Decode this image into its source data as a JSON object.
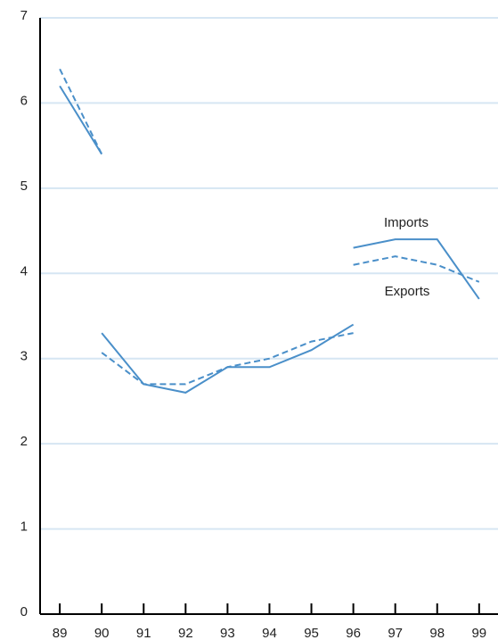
{
  "chart_data": {
    "type": "line",
    "x": [
      89,
      90,
      90,
      90,
      91,
      92,
      93,
      94,
      95,
      96,
      96,
      96,
      97,
      98,
      99
    ],
    "series": [
      {
        "name": "Imports",
        "color": "#4a8fc9",
        "dash": false,
        "values": [
          6.2,
          5.4,
          null,
          3.3,
          2.7,
          2.6,
          2.9,
          2.9,
          3.1,
          3.4,
          null,
          4.3,
          4.4,
          4.4,
          3.7
        ]
      },
      {
        "name": "Exports",
        "color": "#4a8fc9",
        "dash": true,
        "values": [
          6.4,
          5.4,
          null,
          3.07,
          2.7,
          2.7,
          2.9,
          3.0,
          3.2,
          3.3,
          null,
          4.1,
          4.2,
          4.1,
          3.9
        ]
      }
    ],
    "xlim": [
      88.53,
      99.45
    ],
    "xticks": [
      89,
      90,
      91,
      92,
      93,
      94,
      95,
      96,
      97,
      98,
      99
    ],
    "ylim": [
      0,
      7
    ],
    "yticks": [
      0,
      1,
      2,
      3,
      4,
      5,
      6,
      7
    ],
    "grid": true
  }
}
